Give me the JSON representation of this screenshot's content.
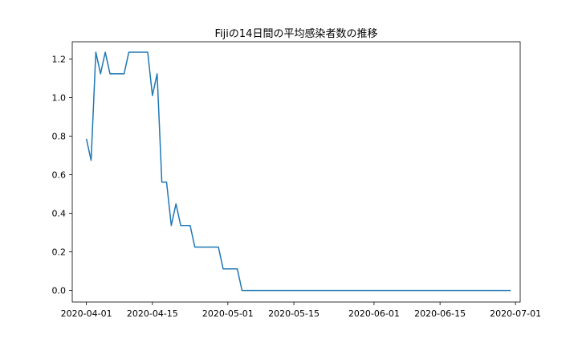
{
  "chart_data": {
    "type": "line",
    "title": "Fijiの14日間の平均感染者数の推移",
    "xlabel": "",
    "ylabel": "",
    "x_axis_type": "date",
    "xlim": [
      "2020-03-29",
      "2020-07-02"
    ],
    "ylim": [
      -0.06,
      1.29
    ],
    "x_ticks": [
      "2020-04-01",
      "2020-04-15",
      "2020-05-01",
      "2020-05-15",
      "2020-06-01",
      "2020-06-15",
      "2020-07-01"
    ],
    "y_ticks": [
      0.0,
      0.2,
      0.4,
      0.6,
      0.8,
      1.0,
      1.2
    ],
    "y_tick_labels": [
      "0.0",
      "0.2",
      "0.4",
      "0.6",
      "0.8",
      "1.0",
      "1.2"
    ],
    "grid": false,
    "legend": "none",
    "series": [
      {
        "color": "#1f77b4",
        "points": [
          [
            "2020-04-01",
            0.786
          ],
          [
            "2020-04-02",
            0.675
          ],
          [
            "2020-04-03",
            1.236
          ],
          [
            "2020-04-04",
            1.124
          ],
          [
            "2020-04-05",
            1.236
          ],
          [
            "2020-04-06",
            1.124
          ],
          [
            "2020-04-07",
            1.124
          ],
          [
            "2020-04-08",
            1.124
          ],
          [
            "2020-04-09",
            1.124
          ],
          [
            "2020-04-10",
            1.236
          ],
          [
            "2020-04-11",
            1.236
          ],
          [
            "2020-04-12",
            1.236
          ],
          [
            "2020-04-13",
            1.236
          ],
          [
            "2020-04-14",
            1.236
          ],
          [
            "2020-04-15",
            1.011
          ],
          [
            "2020-04-16",
            1.124
          ],
          [
            "2020-04-17",
            0.562
          ],
          [
            "2020-04-18",
            0.562
          ],
          [
            "2020-04-19",
            0.337
          ],
          [
            "2020-04-20",
            0.449
          ],
          [
            "2020-04-21",
            0.337
          ],
          [
            "2020-04-22",
            0.337
          ],
          [
            "2020-04-23",
            0.337
          ],
          [
            "2020-04-24",
            0.225
          ],
          [
            "2020-04-25",
            0.225
          ],
          [
            "2020-04-26",
            0.225
          ],
          [
            "2020-04-27",
            0.225
          ],
          [
            "2020-04-28",
            0.225
          ],
          [
            "2020-04-29",
            0.225
          ],
          [
            "2020-04-30",
            0.112
          ],
          [
            "2020-05-01",
            0.112
          ],
          [
            "2020-05-02",
            0.112
          ],
          [
            "2020-05-03",
            0.112
          ],
          [
            "2020-05-04",
            0.0
          ],
          [
            "2020-05-05",
            0.0
          ],
          [
            "2020-05-15",
            0.0
          ],
          [
            "2020-06-01",
            0.0
          ],
          [
            "2020-06-15",
            0.0
          ],
          [
            "2020-06-30",
            0.0
          ]
        ]
      }
    ]
  }
}
